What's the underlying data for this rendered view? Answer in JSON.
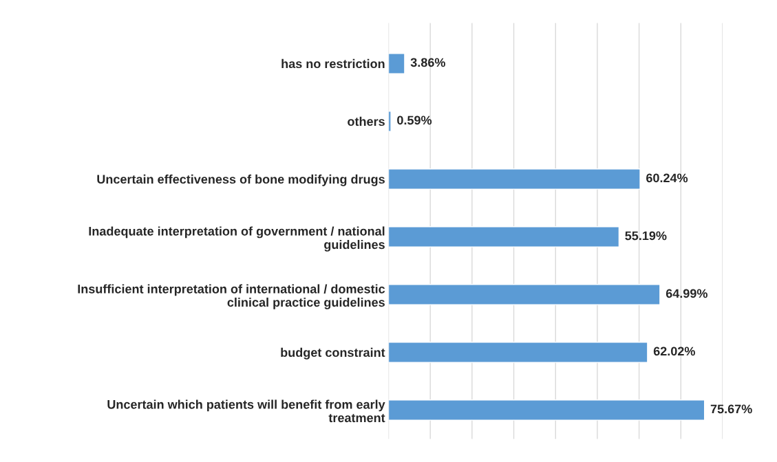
{
  "chart_data": {
    "type": "bar",
    "orientation": "horizontal",
    "categories": [
      "has no restriction",
      "others",
      "Uncertain effectiveness of bone modifying drugs",
      "Inadequate interpretation of government / national\nguidelines",
      "Insufficient interpretation of international / domestic\nclinical practice guidelines",
      "budget constraint",
      "Uncertain which patients will benefit from early\ntreatment"
    ],
    "values": [
      3.86,
      0.59,
      60.24,
      55.19,
      64.99,
      62.02,
      75.67
    ],
    "value_labels": [
      "3.86%",
      "0.59%",
      "60.24%",
      "55.19%",
      "64.99%",
      "62.02%",
      "75.67%"
    ],
    "color": "#5b9bd5",
    "xlim": [
      0,
      80
    ],
    "xticks": [
      {
        "value": 0,
        "label": null
      },
      {
        "value": 10,
        "label": null
      },
      {
        "value": 20,
        "label": null
      },
      {
        "value": 30,
        "label": null
      },
      {
        "value": 40,
        "label": null
      },
      {
        "value": 50,
        "label": null
      },
      {
        "value": 60,
        "label": null
      },
      {
        "value": 70,
        "label": null
      },
      {
        "value": 80,
        "label": null
      }
    ],
    "grid": "x",
    "tick_labels": "y"
  }
}
